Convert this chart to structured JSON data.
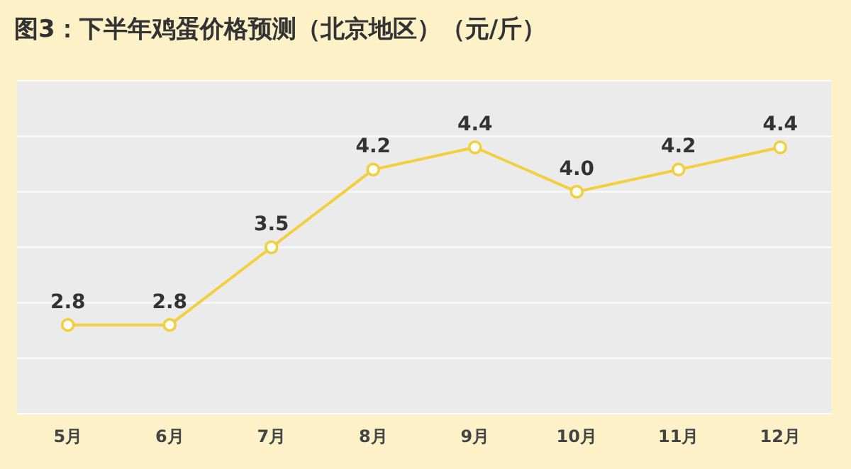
{
  "chart_data": {
    "type": "line",
    "title": "图3：下半年鸡蛋价格预测（北京地区）（元/斤）",
    "categories": [
      "5月",
      "6月",
      "7月",
      "8月",
      "9月",
      "10月",
      "11月",
      "12月"
    ],
    "values": [
      2.8,
      2.8,
      3.5,
      4.2,
      4.4,
      4.0,
      4.2,
      4.4
    ],
    "color": "#f2cf3c",
    "ylim": [
      2,
      5
    ],
    "yticks": [
      {
        "value": 2,
        "label": null
      },
      {
        "value": 2.5,
        "label": null
      },
      {
        "value": 3,
        "label": null
      },
      {
        "value": 3.5,
        "label": null
      },
      {
        "value": 4,
        "label": null
      },
      {
        "value": 4.5,
        "label": null
      },
      {
        "value": 5,
        "label": null
      }
    ],
    "tick_labels": "x",
    "grid": "y",
    "value_labels": [
      "2.8",
      "2.8",
      "3.5",
      "4.2",
      "4.4",
      "4.0",
      "4.2",
      "4.4"
    ],
    "marker": "circle",
    "line_style": "solid"
  }
}
